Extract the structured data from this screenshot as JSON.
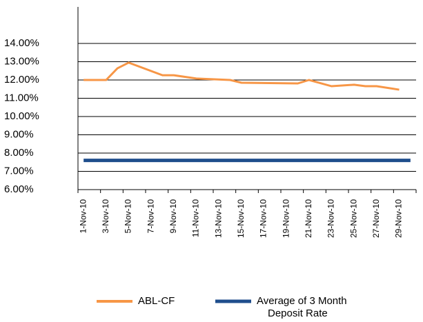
{
  "chart_data": {
    "type": "line",
    "categories": [
      "1-Nov-10",
      null,
      "3-Nov-10",
      null,
      "5-Nov-10",
      null,
      "7-Nov-10",
      null,
      "9-Nov-10",
      null,
      "11-Nov-10",
      null,
      "13-Nov-10",
      null,
      "15-Nov-10",
      null,
      "17-Nov-10",
      null,
      "19-Nov-10",
      null,
      "21-Nov-10",
      null,
      "23-Nov-10",
      null,
      "25-Nov-10",
      null,
      "27-Nov-10",
      null,
      "29-Nov-10",
      null
    ],
    "series": [
      {
        "name": "ABL-CF",
        "color": "#f79646",
        "values": [
          12.0,
          null,
          12.0,
          12.64,
          12.95,
          null,
          null,
          12.26,
          12.26,
          null,
          12.08,
          null,
          null,
          12.0,
          11.85,
          null,
          null,
          null,
          null,
          11.81,
          12.0,
          null,
          11.66,
          null,
          11.74,
          11.66,
          11.66,
          null,
          11.47,
          null
        ]
      },
      {
        "name": "Average of 3 Month Deposit Rate",
        "color": "#1f4e8c",
        "values": [
          7.6,
          7.6,
          7.6,
          7.6,
          7.6,
          7.6,
          7.6,
          7.6,
          7.6,
          7.6,
          7.6,
          7.6,
          7.6,
          7.6,
          7.6,
          7.6,
          7.6,
          7.6,
          7.6,
          7.6,
          7.6,
          7.6,
          7.6,
          7.6,
          7.6,
          7.6,
          7.6,
          7.6,
          7.6,
          7.6
        ]
      }
    ],
    "ylim": [
      6,
      16
    ],
    "yticks": [
      {
        "value": 6,
        "label": "6.00%"
      },
      {
        "value": 7,
        "label": "7.00%"
      },
      {
        "value": 8,
        "label": "8.00%"
      },
      {
        "value": 9,
        "label": "9.00%"
      },
      {
        "value": 10,
        "label": "10.00%"
      },
      {
        "value": 11,
        "label": "11.00%"
      },
      {
        "value": 12,
        "label": "12.00%"
      },
      {
        "value": 13,
        "label": "13.00%"
      },
      {
        "value": 14,
        "label": "14.00%"
      }
    ],
    "grid": true
  }
}
